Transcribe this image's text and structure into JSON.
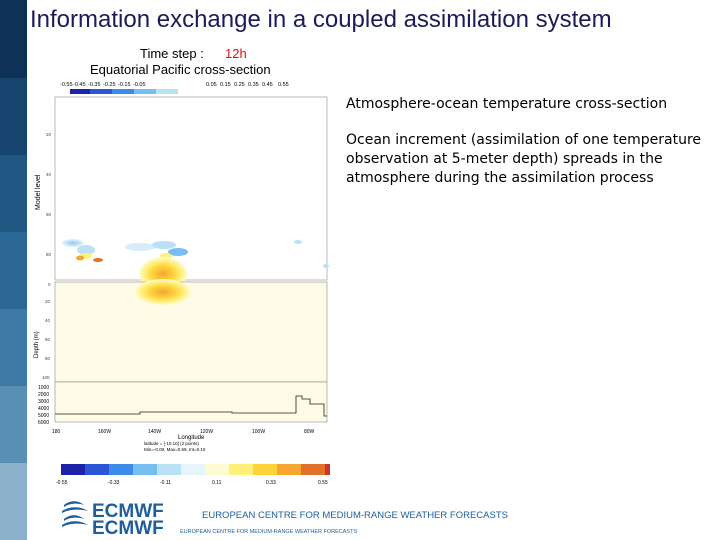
{
  "slide": {
    "title": "Information exchange in a coupled assimilation system",
    "paragraph_1": "Atmosphere-ocean temperature cross-section",
    "paragraph_2": "Ocean increment (assimilation of one temperature observation at 5-meter depth) spreads in the atmosphere during the assimilation process"
  },
  "figure": {
    "time_step_label": "Time step :",
    "time_step_value": "12h",
    "subtitle": "Equatorial Pacific cross-section",
    "top_scale": [
      "-0.55",
      "-0.45",
      "-0.35",
      "-0.25",
      "-0.15",
      "-0.05",
      "0.05",
      "0.15",
      "0.25",
      "0.35",
      "0.45",
      "0.55"
    ],
    "atm_ylabel": "Model level",
    "atm_yticks": [
      "20",
      "40",
      "60",
      "80"
    ],
    "ocean_ylabel": "Depth (m)",
    "ocean_yticks": [
      "0",
      "20",
      "40",
      "60",
      "80",
      "100"
    ],
    "deep_yticks": [
      "1000",
      "2000",
      "3000",
      "4000",
      "5000",
      "6000"
    ],
    "xticks": [
      "180",
      "160W",
      "140W",
      "120W",
      "100W",
      "80W"
    ],
    "xlabel": "Longitude",
    "stats_line_1": "latitude = [-10.10] (2 points)",
    "stats_line_2": "Min=-0.00, Max=0.59, Int=0.10",
    "bottom_scale": [
      "-0.55",
      "-0.33",
      "-0.11",
      "0.11",
      "0.33",
      "0.55"
    ],
    "colors_blue": [
      "#1d22a8",
      "#2a55d6",
      "#3d8be8",
      "#76bff0",
      "#b9e2f6",
      "#e6f5fb"
    ],
    "colors_warm": [
      "#fffbd0",
      "#fff07a",
      "#ffd23a",
      "#f7a730",
      "#e0702a",
      "#c9372a"
    ]
  },
  "footer": {
    "logo_text": "ECMWF",
    "org_name": "EUROPEAN CENTRE FOR MEDIUM-RANGE WEATHER FORECASTS",
    "org_name_small": "EUROPEAN CENTRE FOR MEDIUM-RANGE WEATHER FORECASTS",
    "brand_color": "#1f5e9c"
  },
  "sidebar_colors": [
    "#0e3256",
    "#16466f",
    "#215883",
    "#2c6896",
    "#3e7aa6",
    "#5a8fb5",
    "#8bb0cc"
  ]
}
